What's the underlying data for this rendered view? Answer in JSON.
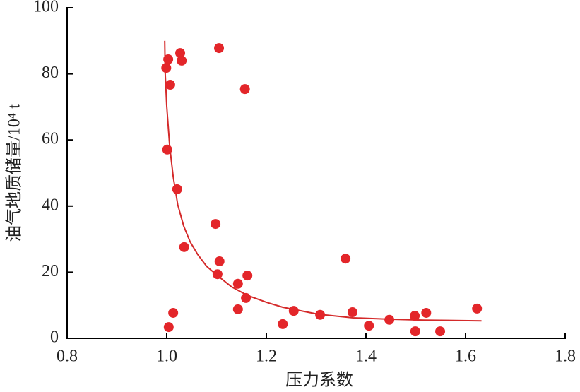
{
  "chart_data": {
    "type": "scatter",
    "xlabel": "压力系数",
    "ylabel": "油气地质储量/10⁴ t",
    "xlim": [
      0.8,
      1.8
    ],
    "ylim": [
      0,
      100
    ],
    "xticks": [
      0.8,
      {
        "value": 1,
        "label": "1.0"
      },
      1.2,
      1.4,
      1.6,
      1.8
    ],
    "yticks": [
      0,
      20,
      40,
      60,
      80,
      100
    ],
    "color": "#e3262a",
    "x": [
      0.999,
      1.003,
      1.007,
      1.027,
      1.03,
      1.105,
      1.157,
      1.001,
      1.021,
      1.035,
      1.098,
      1.102,
      1.106,
      1.143,
      1.162,
      1.159,
      1.143,
      1.013,
      1.004,
      1.233,
      1.255,
      1.308,
      1.359,
      1.373,
      1.406,
      1.447,
      1.498,
      1.499,
      1.521,
      1.549,
      1.623
    ],
    "values": [
      81.8,
      84.4,
      76.7,
      86.3,
      84.0,
      87.8,
      75.4,
      57.1,
      45.1,
      27.6,
      34.6,
      19.4,
      23.3,
      16.5,
      19.0,
      12.2,
      8.8,
      7.7,
      3.4,
      4.3,
      8.3,
      7.1,
      24.1,
      7.9,
      3.8,
      5.6,
      6.8,
      2.1,
      7.7,
      2.1,
      9.0
    ],
    "fit": {
      "color": "#d42a2a",
      "x": [
        0.996,
        0.997,
        1.0,
        1.006,
        1.013,
        1.022,
        1.034,
        1.047,
        1.062,
        1.08,
        1.105,
        1.13,
        1.162,
        1.2,
        1.233,
        1.27,
        1.304,
        1.374,
        1.445,
        1.516,
        1.632
      ],
      "values": [
        90,
        80,
        70.3,
        58,
        48.9,
        40.5,
        34,
        29.2,
        25.4,
        21.8,
        18.6,
        15.6,
        13.0,
        10.9,
        9.4,
        8.3,
        7.3,
        6.2,
        5.8,
        5.5,
        5.3
      ]
    }
  }
}
